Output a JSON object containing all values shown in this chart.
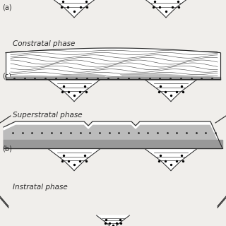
{
  "labels": {
    "a": "(a)",
    "b": "(b)",
    "c": "(c)",
    "phase1": "Constratal phase",
    "phase2": "Superstratal phase",
    "phase3": "Instratal phase"
  },
  "bg_color": "#f0eeeb",
  "line_color": "#2a2a2a",
  "gray_fill": "#999999",
  "med_gray": "#bbbbbb",
  "white": "#ffffff",
  "font_size_label": 7,
  "font_size_phase": 7.5
}
